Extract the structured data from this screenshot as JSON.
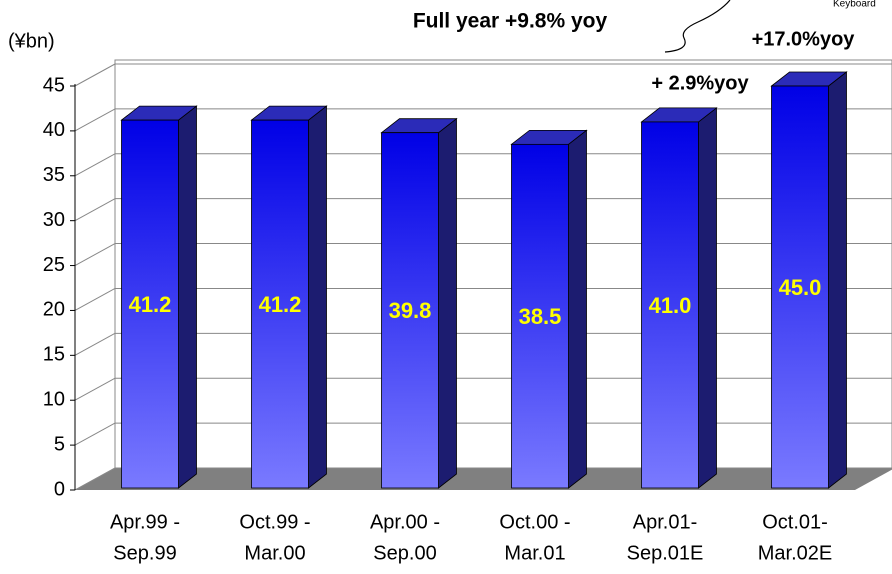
{
  "chart_data": {
    "type": "bar3d",
    "y_label": "(¥bn)",
    "categories": [
      [
        "Apr.99 -",
        "Sep.99"
      ],
      [
        "Oct.99 -",
        "Mar.00"
      ],
      [
        "Apr.00 -",
        "Sep.00"
      ],
      [
        "Oct.00 -",
        "Mar.01"
      ],
      [
        "Apr.01-",
        "Sep.01E"
      ],
      [
        "Oct.01-",
        "Mar.02E"
      ]
    ],
    "values": [
      41.2,
      41.2,
      39.8,
      38.5,
      41.0,
      45.0
    ],
    "value_labels": [
      "41.2",
      "41.2",
      "39.8",
      "38.5",
      "41.0",
      "45.0"
    ],
    "color": "#0000e6",
    "ylim": [
      0,
      45
    ],
    "yticks": [
      0,
      5,
      10,
      15,
      20,
      25,
      30,
      35,
      40,
      45
    ],
    "grid": true,
    "annotations": [
      "Full year +9.8% yoy",
      "+ 2.9%yoy",
      "+17.0%yoy",
      "Keyboard"
    ]
  }
}
